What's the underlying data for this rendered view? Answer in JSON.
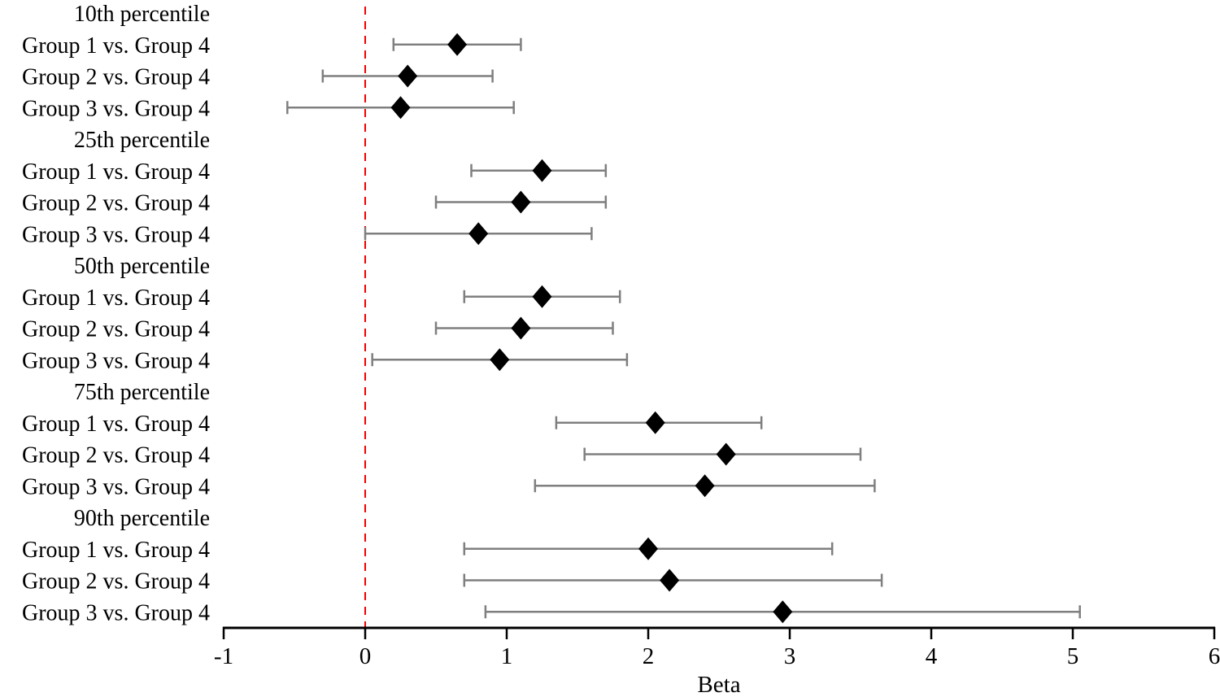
{
  "chart_data": {
    "type": "forest",
    "title": "",
    "xlabel": "Beta",
    "ylabel": "",
    "xlim": [
      -1,
      6
    ],
    "x_ticks": [
      -1,
      0,
      1,
      2,
      3,
      4,
      5,
      6
    ],
    "grid": false,
    "legend": "none",
    "reference_line_x": 0,
    "marker_shape": "diamond",
    "colors": {
      "marker": "#000000",
      "error_bar": "#7f7f7f",
      "reference_line": "#f20000",
      "axis": "#000000",
      "text": "#000000",
      "background": "#ffffff"
    },
    "rows": [
      {
        "type": "header",
        "label": "10th percentile"
      },
      {
        "type": "estimate",
        "label": "Group 1 vs. Group 4",
        "beta": 0.65,
        "ci_low": 0.2,
        "ci_high": 1.1
      },
      {
        "type": "estimate",
        "label": "Group 2 vs. Group 4",
        "beta": 0.3,
        "ci_low": -0.3,
        "ci_high": 0.9
      },
      {
        "type": "estimate",
        "label": "Group 3 vs. Group 4",
        "beta": 0.25,
        "ci_low": -0.55,
        "ci_high": 1.05
      },
      {
        "type": "header",
        "label": "25th percentile"
      },
      {
        "type": "estimate",
        "label": "Group 1 vs. Group 4",
        "beta": 1.25,
        "ci_low": 0.75,
        "ci_high": 1.7
      },
      {
        "type": "estimate",
        "label": "Group 2 vs. Group 4",
        "beta": 1.1,
        "ci_low": 0.5,
        "ci_high": 1.7
      },
      {
        "type": "estimate",
        "label": "Group 3 vs. Group 4",
        "beta": 0.8,
        "ci_low": 0.0,
        "ci_high": 1.6
      },
      {
        "type": "header",
        "label": "50th percentile"
      },
      {
        "type": "estimate",
        "label": "Group 1 vs. Group 4",
        "beta": 1.25,
        "ci_low": 0.7,
        "ci_high": 1.8
      },
      {
        "type": "estimate",
        "label": "Group 2 vs. Group 4",
        "beta": 1.1,
        "ci_low": 0.5,
        "ci_high": 1.75
      },
      {
        "type": "estimate",
        "label": "Group 3 vs. Group 4",
        "beta": 0.95,
        "ci_low": 0.05,
        "ci_high": 1.85
      },
      {
        "type": "header",
        "label": "75th percentile"
      },
      {
        "type": "estimate",
        "label": "Group 1 vs. Group 4",
        "beta": 2.05,
        "ci_low": 1.35,
        "ci_high": 2.8
      },
      {
        "type": "estimate",
        "label": "Group 2 vs. Group 4",
        "beta": 2.55,
        "ci_low": 1.55,
        "ci_high": 3.5
      },
      {
        "type": "estimate",
        "label": "Group 3 vs. Group 4",
        "beta": 2.4,
        "ci_low": 1.2,
        "ci_high": 3.6
      },
      {
        "type": "header",
        "label": "90th percentile"
      },
      {
        "type": "estimate",
        "label": "Group 1 vs. Group 4",
        "beta": 2.0,
        "ci_low": 0.7,
        "ci_high": 3.3
      },
      {
        "type": "estimate",
        "label": "Group 2 vs. Group 4",
        "beta": 2.15,
        "ci_low": 0.7,
        "ci_high": 3.65
      },
      {
        "type": "estimate",
        "label": "Group 3 vs. Group 4",
        "beta": 2.95,
        "ci_low": 0.85,
        "ci_high": 5.05
      }
    ]
  }
}
